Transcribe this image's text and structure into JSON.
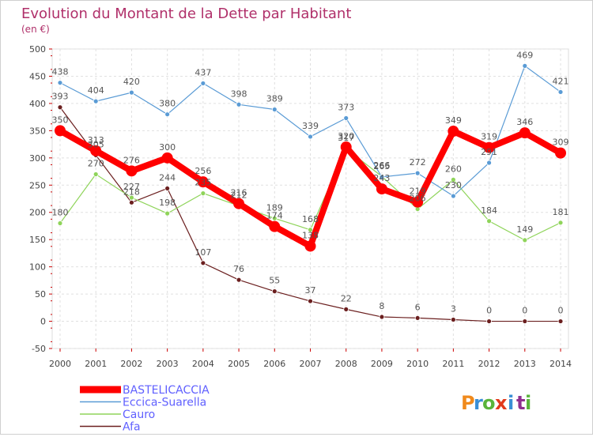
{
  "chart_data": {
    "type": "line",
    "title": "Evolution du Montant de la Dette par Habitant",
    "subtitle": "(en €)",
    "xlabel": "",
    "ylabel": "",
    "ylim": [
      -50,
      500
    ],
    "yticks": [
      -50,
      0,
      50,
      100,
      150,
      200,
      250,
      300,
      350,
      400,
      450,
      500
    ],
    "x": [
      "2000",
      "2001",
      "2002",
      "2003",
      "2004",
      "2005",
      "2006",
      "2007",
      "2008",
      "2009",
      "2010",
      "2011",
      "2012",
      "2013",
      "2014"
    ],
    "grid": true,
    "legend_position": "bottom-left",
    "series": [
      {
        "name": "BASTELICACCIA",
        "color": "#ff0000",
        "values": [
          350,
          313,
          276,
          300,
          256,
          216,
          174,
          138,
          320,
          243,
          219,
          349,
          319,
          346,
          309
        ]
      },
      {
        "name": "Eccica-Suarella",
        "color": "#5a9bd5",
        "values": [
          438,
          404,
          420,
          380,
          437,
          398,
          389,
          339,
          373,
          265,
          272,
          230,
          291,
          469,
          421
        ]
      },
      {
        "name": "Cauro",
        "color": "#8fd45a",
        "values": [
          180,
          270,
          227,
          198,
          235,
          212,
          189,
          168,
          317,
          266,
          206,
          260,
          184,
          149,
          181
        ]
      },
      {
        "name": "Afa",
        "color": "#6b1f1f",
        "values": [
          393,
          305,
          218,
          244,
          107,
          76,
          55,
          37,
          22,
          8,
          6,
          3,
          0,
          0,
          0
        ]
      }
    ]
  },
  "brand": {
    "letters": [
      "P",
      "r",
      "o",
      "x",
      "i",
      "t",
      "i"
    ]
  }
}
